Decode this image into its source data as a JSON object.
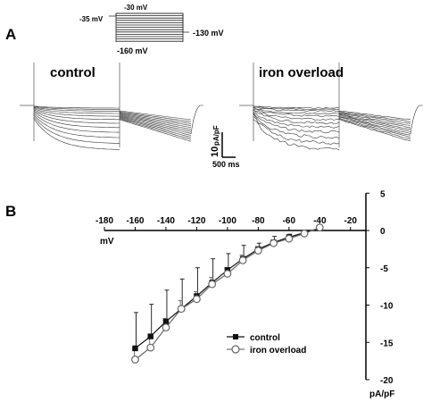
{
  "panel_a": {
    "label": "A",
    "protocol": {
      "v_top": "-30 mV",
      "v_hold": "-35 mV",
      "v_return": "-130 mV",
      "v_bottom": "-160 mV"
    },
    "titles": [
      "control",
      "iron overload"
    ],
    "scale_bar": {
      "y_value": "10",
      "y_unit": "pA/pF",
      "x_label": "500 ms"
    }
  },
  "panel_b": {
    "label": "B"
  },
  "chart_data": {
    "type": "line",
    "xlabel": "mV",
    "ylabel": "pA/pF",
    "xlim": [
      -180,
      -10
    ],
    "ylim": [
      -20,
      5
    ],
    "x_ticks": [
      -180,
      -160,
      -140,
      -120,
      -100,
      -80,
      -60,
      -40,
      -20
    ],
    "y_ticks": [
      5,
      0,
      -5,
      -10,
      -15,
      -20
    ],
    "legend_position": "bottom-right",
    "grid": false,
    "series": [
      {
        "name": "control",
        "marker": "filled-square",
        "color": "#111111",
        "x": [
          -160,
          -150,
          -140,
          -130,
          -120,
          -110,
          -100,
          -90,
          -80,
          -70,
          -60,
          -50,
          -40
        ],
        "y": [
          -15.8,
          -14.2,
          -12.2,
          -10.5,
          -8.8,
          -7.0,
          -5.3,
          -3.8,
          -2.5,
          -1.6,
          -0.9,
          -0.3,
          0.3
        ],
        "error": [
          4.8,
          4.3,
          4.2,
          4.0,
          3.8,
          3.2,
          2.2,
          1.8,
          0.8,
          0.8,
          0.4,
          0.2,
          0.3
        ]
      },
      {
        "name": "iron overload",
        "marker": "open-circle",
        "color": "#666666",
        "x": [
          -160,
          -150,
          -140,
          -130,
          -120,
          -110,
          -100,
          -90,
          -80,
          -70,
          -60,
          -50,
          -40
        ],
        "y": [
          -17.3,
          -15.7,
          -13.0,
          -10.5,
          -9.2,
          -7.2,
          -5.8,
          -4.0,
          -2.7,
          -1.7,
          -1.1,
          -0.4,
          0.4
        ],
        "error": [
          1.5,
          1.3,
          1.2,
          1.1,
          1.0,
          0.9,
          0.8,
          0.7,
          0.5,
          0.4,
          0.3,
          0.2,
          0.2
        ]
      }
    ]
  }
}
